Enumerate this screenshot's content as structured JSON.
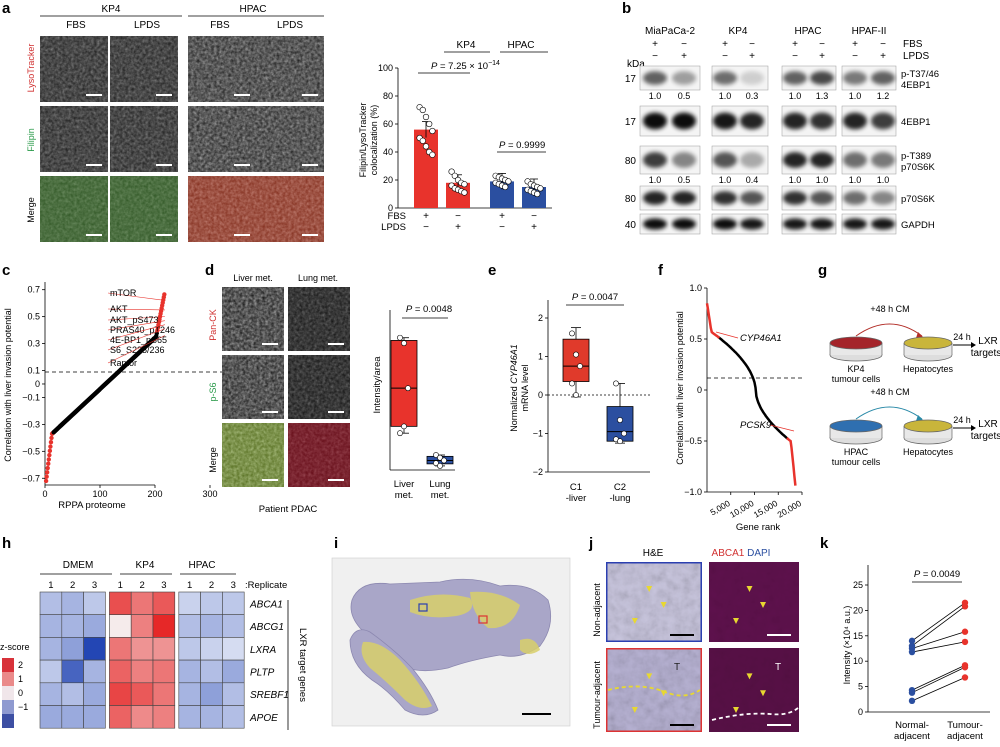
{
  "panels": {
    "a": "a",
    "b": "b",
    "c": "c",
    "d": "d",
    "e": "e",
    "f": "f",
    "g": "g",
    "h": "h",
    "i": "i",
    "j": "j",
    "k": "k"
  },
  "a": {
    "groups": [
      "KP4",
      "HPAC"
    ],
    "conditions": [
      "FBS",
      "LPDS",
      "FBS",
      "LPDS"
    ],
    "rows": [
      "LysoTracker",
      "Filipin",
      "Merge"
    ]
  },
  "colors": {
    "red": "#e8332c",
    "blue": "#2b4fa0",
    "yellow": "#f0e24a",
    "rna_red": "#e03a2b"
  },
  "b": {
    "cell_lines": [
      "MiaPaCa-2",
      "KP4",
      "HPAC",
      "HPAF-II"
    ],
    "fbs_label": "FBS",
    "lpds_label": "LPDS",
    "plus": "+",
    "minus": "−",
    "kda": "kDa",
    "rows": [
      {
        "kda": "17",
        "label1": "p-T37/46",
        "label2": "4EBP1",
        "quant": [
          "1.0",
          "0.5",
          "1.0",
          "0.3",
          "1.0",
          "1.3",
          "1.0",
          "1.2"
        ]
      },
      {
        "kda": "17",
        "label1": "4EBP1",
        "label2": "",
        "quant": []
      },
      {
        "kda": "80",
        "label1": "p-T389",
        "label2": "p70S6K",
        "quant": [
          "1.0",
          "0.5",
          "1.0",
          "0.4",
          "1.0",
          "1.0",
          "1.0",
          "1.0"
        ]
      },
      {
        "kda": "80",
        "label1": "p70S6K",
        "label2": "",
        "quant": []
      },
      {
        "kda": "40",
        "label1": "GAPDH",
        "label2": "",
        "quant": []
      }
    ]
  },
  "c": {
    "chart_data": {
      "type": "scatter",
      "xlabel": "RPPA proteome",
      "ylabel": "Correlation with liver invasion potential",
      "xlim": [
        0,
        300
      ],
      "ylim": [
        -0.75,
        0.72
      ],
      "xticks": [
        "0",
        "100",
        "200",
        "300"
      ],
      "yticks": [
        "0.7",
        "0.5",
        "0.3",
        "0.1",
        "0",
        "−0.1",
        "−0.3",
        "−0.5",
        "−0.7"
      ],
      "annotations": [
        "mTOR",
        "AKT",
        "AKT_pS473",
        "PRAS40_pT246",
        "4E-BP1_pS65",
        "S6_S235/236",
        "Raptor"
      ]
    }
  },
  "d": {
    "columns": [
      "Liver met.",
      "Lung met."
    ],
    "rows": [
      "Pan-CK",
      "p-S6",
      "Merge"
    ],
    "caption": "Patient PDAC",
    "chart_data": {
      "type": "box",
      "ylabel": "Intensity/area",
      "categories": [
        "Liver met.",
        "Lung met."
      ],
      "liver": {
        "min": 27,
        "q1": 32,
        "median": 60,
        "q3": 95,
        "max": 97,
        "points": [
          97,
          93,
          60,
          27,
          32
        ]
      },
      "lung": {
        "min": 3,
        "q1": 4.5,
        "median": 7,
        "q3": 10,
        "max": 11,
        "points": [
          11,
          9,
          7,
          5,
          3
        ]
      },
      "pvalue": "P = 0.0048",
      "ylim": [
        0,
        110
      ]
    }
  },
  "e": {
    "chart_data": {
      "type": "box",
      "ylabel_1": "Normalized ",
      "ylabel_gene": "CYP46A1",
      "ylabel_2": "mRNA level",
      "categories": [
        "C1 -liver",
        "C2 -lung"
      ],
      "cat_line1": [
        "C1",
        "C2"
      ],
      "cat_line2": [
        "-liver",
        "-lung"
      ],
      "yticks": [
        "2",
        "1",
        "0",
        "−1",
        "−2"
      ],
      "ylim": [
        -2,
        2.2
      ],
      "pvalue": "P = 0.0047",
      "c1": {
        "min": -0.05,
        "q1": 0.35,
        "median": 0.75,
        "q3": 1.45,
        "max": 1.75,
        "points": [
          1.6,
          1.05,
          0.75,
          0.3,
          0.0
        ]
      },
      "c2": {
        "min": -1.25,
        "q1": -1.2,
        "median": -0.95,
        "q3": -0.3,
        "max": 0.3,
        "points": [
          0.3,
          -0.65,
          -1.0,
          -1.15,
          -1.2
        ]
      }
    }
  },
  "f": {
    "chart_data": {
      "type": "line",
      "xlabel": "Gene rank",
      "ylabel": "Correlation with liver invasion potential",
      "xticks": [
        "5,000",
        "10,000",
        "15,000",
        "20,000"
      ],
      "yticks": [
        "1.0",
        "0.5",
        "0",
        "−0.5",
        "−1.0"
      ],
      "xlim": [
        0,
        20000
      ],
      "ylim": [
        -1,
        1
      ],
      "labels": [
        "CYP46A1",
        "PCSK9"
      ]
    }
  },
  "g": {
    "cm1": "+48 h CM",
    "cm2": "+48 h CM",
    "h24a": "24 h",
    "h24b": "24 h",
    "lxr1": "LXR",
    "lxr2": "LXR",
    "targets1": "targets",
    "targets2": "targets",
    "kp4": "KP4",
    "hpac": "HPAC",
    "tumour": "tumour cells",
    "hep": "Hepatocytes"
  },
  "h": {
    "groups": [
      "DMEM",
      "KP4",
      "HPAC"
    ],
    "replicate_label": ":Replicate",
    "reps": [
      "1",
      "2",
      "3",
      "1",
      "2",
      "3",
      "1",
      "2",
      "3"
    ],
    "genes": [
      "ABCA1",
      "ABCG1",
      "LXRA",
      "PLTP",
      "SREBF1",
      "APOE"
    ],
    "side_label": "LXR target genes",
    "zscore": "z-score",
    "scale": [
      "2",
      "1",
      "0",
      "−1"
    ],
    "chart_data": {
      "type": "heatmap",
      "values": [
        [
          -0.4,
          -0.5,
          -0.3,
          1.6,
          1.2,
          1.5,
          -0.2,
          -0.3,
          -0.3
        ],
        [
          -0.5,
          -0.5,
          -0.6,
          0.0,
          1.1,
          2.0,
          -0.4,
          -0.5,
          -0.4
        ],
        [
          -0.5,
          -0.7,
          -1.6,
          1.2,
          0.9,
          0.9,
          -0.3,
          -0.2,
          -0.1
        ],
        [
          -0.3,
          -1.3,
          -0.5,
          1.4,
          1.1,
          1.2,
          -0.5,
          -0.4,
          -0.6
        ],
        [
          -0.5,
          -0.4,
          -0.6,
          1.7,
          1.5,
          1.2,
          -0.5,
          -0.7,
          -0.4
        ],
        [
          -0.6,
          -0.6,
          -0.6,
          1.4,
          1.0,
          1.1,
          -0.5,
          -0.5,
          -0.4
        ]
      ]
    }
  },
  "j": {
    "he": "H&E",
    "abca1": "ABCA1",
    "dapi": " DAPI",
    "non_adj": "Non-adjacent",
    "tum_adj": "Tumour-adjacent",
    "t": "T"
  },
  "k": {
    "chart_data": {
      "type": "paired-dot",
      "ylabel": "Intensity (×10⁴ a.u.)",
      "categories": [
        "Normal-adjacent",
        "Tumour-adjacent"
      ],
      "cat_line1": [
        "Normal-",
        "Tumour-"
      ],
      "cat_line2": [
        "adjacent",
        "adjacent"
      ],
      "yticks": [
        "25",
        "20",
        "15",
        "10",
        "5",
        "0"
      ],
      "ylim": [
        0,
        25
      ],
      "pvalue": "P = 0.0049",
      "pairs": [
        [
          14,
          21.5
        ],
        [
          13,
          20.8
        ],
        [
          12.5,
          15.8
        ],
        [
          11.8,
          13.8
        ],
        [
          4.3,
          9.2
        ],
        [
          3.8,
          8.8
        ],
        [
          2.2,
          6.8
        ]
      ]
    }
  },
  "a_chart": {
    "chart_data": {
      "type": "bar",
      "ylabel": "Filipin/LysoTracker colocalization (%)",
      "yticks": [
        "100",
        "80",
        "60",
        "40",
        "20",
        "0"
      ],
      "ylim": [
        0,
        100
      ],
      "groups": [
        "KP4",
        "HPAC"
      ],
      "values": [
        56,
        18,
        19,
        15
      ],
      "colors": [
        "red",
        "red",
        "blue",
        "blue"
      ],
      "pvalue1_base": "P = 7.25 × 10",
      "pvalue1_exp": "−14",
      "pvalue2": "P = 0.9999",
      "fbs_row": [
        "+",
        "−",
        "+",
        "−"
      ],
      "lpds_row": [
        "−",
        "+",
        "−",
        "+"
      ],
      "fbs": "FBS",
      "lpds": "LPDS",
      "points": [
        [
          72,
          70,
          65,
          60,
          55,
          50,
          48,
          44,
          40,
          38
        ],
        [
          26,
          23,
          20,
          18,
          17,
          16,
          14,
          13,
          12,
          11
        ],
        [
          23,
          22,
          21,
          20,
          19,
          18,
          17,
          16,
          15
        ],
        [
          19,
          17,
          16,
          15,
          14,
          13,
          12,
          11,
          10
        ]
      ]
    }
  }
}
